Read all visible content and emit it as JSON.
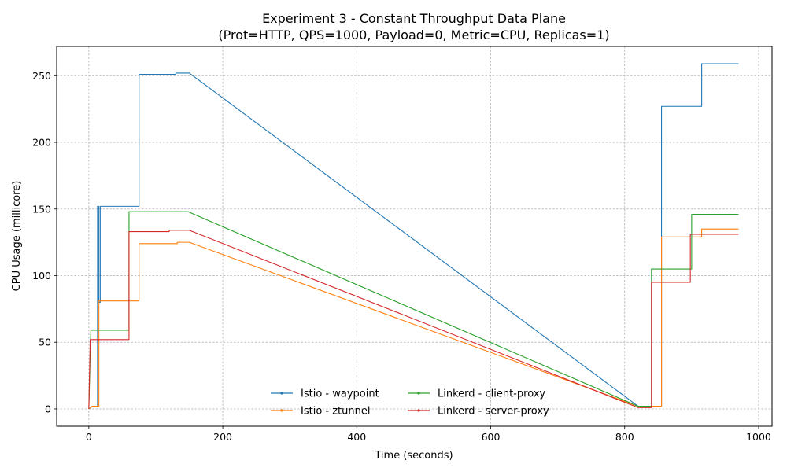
{
  "chart_data": {
    "type": "line",
    "title": "Experiment 3 - Constant Throughput Data Plane",
    "subtitle": "(Prot=HTTP, QPS=1000, Payload=0, Metric=CPU, Replicas=1)",
    "xlabel": "Time (seconds)",
    "ylabel": "CPU Usage (millicore)",
    "xlim": [
      -48,
      1020
    ],
    "ylim": [
      -13,
      272
    ],
    "xticks": [
      0,
      200,
      400,
      600,
      800,
      1000
    ],
    "yticks": [
      0,
      50,
      100,
      150,
      200,
      250
    ],
    "grid": true,
    "legend_position": "lower-center",
    "series": [
      {
        "name": "Istio - waypoint",
        "color": "#1f77b4",
        "points": [
          [
            0,
            0
          ],
          [
            5,
            2
          ],
          [
            13,
            2
          ],
          [
            13,
            152
          ],
          [
            15,
            152
          ],
          [
            15,
            80
          ],
          [
            17,
            80
          ],
          [
            17,
            152
          ],
          [
            75,
            152
          ],
          [
            75,
            251
          ],
          [
            130,
            251
          ],
          [
            130,
            252
          ],
          [
            150,
            252
          ],
          [
            820,
            2
          ],
          [
            840,
            2
          ],
          [
            840,
            2
          ],
          [
            855,
            2
          ],
          [
            855,
            227
          ],
          [
            915,
            227
          ],
          [
            915,
            259
          ],
          [
            970,
            259
          ]
        ]
      },
      {
        "name": "Istio - ztunnel",
        "color": "#ff7f0e",
        "points": [
          [
            0,
            0
          ],
          [
            5,
            2
          ],
          [
            15,
            2
          ],
          [
            15,
            81
          ],
          [
            75,
            81
          ],
          [
            75,
            124
          ],
          [
            132,
            124
          ],
          [
            132,
            125
          ],
          [
            150,
            125
          ],
          [
            820,
            2
          ],
          [
            850,
            2
          ],
          [
            850,
            2
          ],
          [
            855,
            2
          ],
          [
            855,
            129
          ],
          [
            915,
            129
          ],
          [
            915,
            135
          ],
          [
            970,
            135
          ]
        ]
      },
      {
        "name": "Linkerd - client-proxy",
        "color": "#2ca02c",
        "points": [
          [
            0,
            0
          ],
          [
            3,
            59
          ],
          [
            60,
            59
          ],
          [
            60,
            148
          ],
          [
            148,
            148
          ],
          [
            820,
            2
          ],
          [
            840,
            2
          ],
          [
            840,
            105
          ],
          [
            900,
            105
          ],
          [
            900,
            146
          ],
          [
            970,
            146
          ]
        ]
      },
      {
        "name": "Linkerd - server-proxy",
        "color": "#d62728",
        "points": [
          [
            0,
            0
          ],
          [
            2,
            52
          ],
          [
            60,
            52
          ],
          [
            60,
            133
          ],
          [
            120,
            133
          ],
          [
            120,
            134
          ],
          [
            150,
            134
          ],
          [
            820,
            1
          ],
          [
            840,
            1
          ],
          [
            840,
            95
          ],
          [
            898,
            95
          ],
          [
            898,
            131
          ],
          [
            970,
            131
          ]
        ]
      }
    ]
  }
}
